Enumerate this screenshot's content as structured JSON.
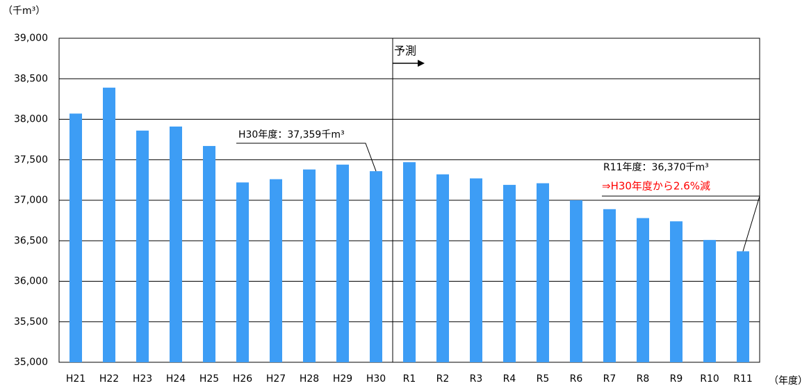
{
  "chart_data": {
    "type": "bar",
    "y_unit": "（千m³）",
    "x_unit": "（年度）",
    "categories": [
      "H21",
      "H22",
      "H23",
      "H24",
      "H25",
      "H26",
      "H27",
      "H28",
      "H29",
      "H30",
      "R1",
      "R2",
      "R3",
      "R4",
      "R5",
      "R6",
      "R7",
      "R8",
      "R9",
      "R10",
      "R11"
    ],
    "values": [
      38070,
      38390,
      37860,
      37910,
      37670,
      37220,
      37260,
      37380,
      37440,
      37359,
      37470,
      37320,
      37270,
      37190,
      37210,
      37000,
      36890,
      36780,
      36740,
      36510,
      36370
    ],
    "color": "#3d9df5",
    "ylim": [
      35000,
      39000
    ],
    "yticks": [
      {
        "value": 35000,
        "label": "35,000"
      },
      {
        "value": 35500,
        "label": "35,500"
      },
      {
        "value": 36000,
        "label": "36,000"
      },
      {
        "value": 36500,
        "label": "36,500"
      },
      {
        "value": 37000,
        "label": "37,000"
      },
      {
        "value": 37500,
        "label": "37,500"
      },
      {
        "value": 38000,
        "label": "38,000"
      },
      {
        "value": 38500,
        "label": "38,500"
      },
      {
        "value": 39000,
        "label": "39,000"
      }
    ],
    "grid": true,
    "annotations": [
      "予測",
      "H30年度：37,359千m³",
      "R11年度：36,370千m³",
      "⇒H30年度から2.6%減"
    ]
  }
}
